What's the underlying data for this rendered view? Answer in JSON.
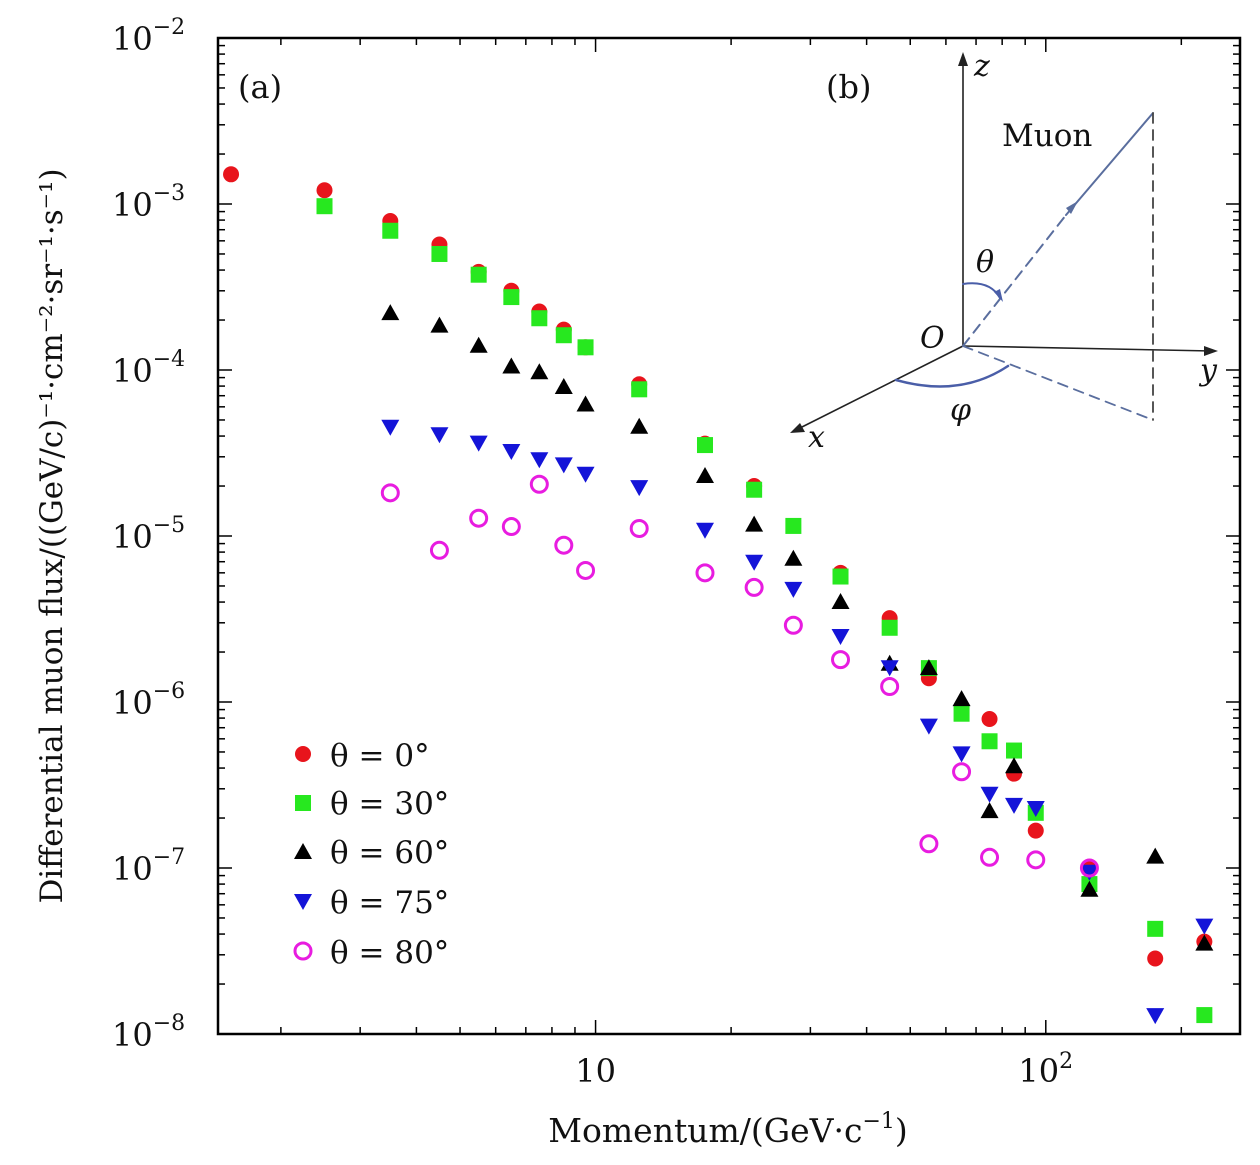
{
  "chart_data": {
    "type": "scatter",
    "xlabel": "Momentum/(GeV·c",
    "xlabel_sup": "−1",
    "ylabel": "Differential muon flux/((GeV/c)⁻¹·cm⁻²·sr⁻¹·s⁻¹)",
    "x_scale": "log",
    "y_scale": "log",
    "xlim": [
      1.45,
      270
    ],
    "ylim": [
      1e-08,
      0.01
    ],
    "x_ticks": [
      {
        "value": 10,
        "base": "10",
        "sup": ""
      },
      {
        "value": 100,
        "base": "10",
        "sup": "2"
      }
    ],
    "y_ticks": [
      {
        "value": 0.01,
        "base": "10",
        "sup": "−2"
      },
      {
        "value": 0.001,
        "base": "10",
        "sup": "−3"
      },
      {
        "value": 0.0001,
        "base": "10",
        "sup": "−4"
      },
      {
        "value": 1e-05,
        "base": "10",
        "sup": "−5"
      },
      {
        "value": 1e-06,
        "base": "10",
        "sup": "−6"
      },
      {
        "value": 1e-07,
        "base": "10",
        "sup": "−7"
      },
      {
        "value": 1e-08,
        "base": "10",
        "sup": "−8"
      }
    ],
    "legend_position": "bottom-left",
    "panel_labels": [
      "(a)",
      "(b)"
    ],
    "series": [
      {
        "name": "θ = 0°",
        "marker": "circle",
        "color": "#e8141c",
        "x": [
          1.55,
          2.5,
          3.5,
          4.5,
          5.5,
          6.5,
          7.5,
          8.5,
          9.5,
          12.5,
          17.5,
          22.5,
          35,
          45,
          55,
          75,
          85,
          95,
          125,
          175,
          225
        ],
        "y": [
          0.00151,
          0.00121,
          0.00079,
          0.00057,
          0.00039,
          0.0003,
          0.000225,
          0.000175,
          0.000137,
          8.2e-05,
          3.6e-05,
          2e-05,
          6e-06,
          3.2e-06,
          1.39e-06,
          7.9e-07,
          3.7e-07,
          1.68e-07,
          1e-07,
          2.85e-08,
          3.6e-08
        ]
      },
      {
        "name": "θ = 30°",
        "marker": "square",
        "color": "#27e81f",
        "x": [
          2.5,
          3.5,
          4.5,
          5.5,
          6.5,
          7.5,
          8.5,
          9.5,
          12.5,
          17.5,
          22.5,
          27.5,
          35,
          45,
          55,
          65,
          75,
          85,
          95,
          125,
          175,
          225
        ],
        "y": [
          0.00097,
          0.00069,
          0.0005,
          0.000375,
          0.000275,
          0.000205,
          0.000162,
          0.000137,
          7.65e-05,
          3.53e-05,
          1.9e-05,
          1.15e-05,
          5.7e-06,
          2.8e-06,
          1.6e-06,
          8.5e-07,
          5.8e-07,
          5.1e-07,
          2.15e-07,
          8e-08,
          4.3e-08,
          1.3e-08
        ]
      },
      {
        "name": "θ = 60°",
        "marker": "triangle-up",
        "color": "#000000",
        "x": [
          3.5,
          4.5,
          5.5,
          6.5,
          7.5,
          8.5,
          9.5,
          12.5,
          17.5,
          22.5,
          27.5,
          35,
          45,
          55,
          65,
          75,
          85,
          125,
          175,
          225
        ],
        "y": [
          0.00022,
          0.000185,
          0.00014,
          0.000105,
          9.7e-05,
          7.9e-05,
          6.2e-05,
          4.55e-05,
          2.3e-05,
          1.17e-05,
          7.3e-06,
          4e-06,
          1.7e-06,
          1.6e-06,
          1.04e-06,
          2.2e-07,
          4.1e-07,
          7.4e-08,
          1.17e-07,
          3.5e-08
        ]
      },
      {
        "name": "θ = 75°",
        "marker": "triangle-down",
        "color": "#1414d8",
        "x": [
          3.5,
          4.5,
          5.5,
          6.5,
          7.5,
          8.5,
          9.5,
          12.5,
          17.5,
          22.5,
          27.5,
          35,
          45,
          55,
          65,
          75,
          85,
          95,
          125,
          175,
          225
        ],
        "y": [
          4.55e-05,
          4.1e-05,
          3.65e-05,
          3.25e-05,
          2.9e-05,
          2.7e-05,
          2.37e-05,
          1.97e-05,
          1.09e-05,
          7e-06,
          4.8e-06,
          2.5e-06,
          1.62e-06,
          7.2e-07,
          4.9e-07,
          2.8e-07,
          2.4e-07,
          2.3e-07,
          9.5e-08,
          1.3e-08,
          4.5e-08
        ]
      },
      {
        "name": "θ = 80°",
        "marker": "circle-open",
        "color": "#e81ce0",
        "x": [
          3.5,
          4.5,
          5.5,
          6.5,
          7.5,
          8.5,
          9.5,
          12.5,
          17.5,
          22.5,
          27.5,
          35,
          45,
          55,
          65,
          75,
          95,
          125
        ],
        "y": [
          1.82e-05,
          8.2e-06,
          1.28e-05,
          1.14e-05,
          2.05e-05,
          8.8e-06,
          6.2e-06,
          1.11e-05,
          6e-06,
          4.9e-06,
          2.9e-06,
          1.8e-06,
          1.24e-06,
          1.4e-07,
          3.8e-07,
          1.16e-07,
          1.12e-07,
          1e-07
        ]
      }
    ],
    "inset": {
      "axis_z": "z",
      "axis_y": "y",
      "axis_x": "x",
      "origin": "O",
      "theta": "θ",
      "phi": "φ",
      "label": "Muon"
    }
  }
}
